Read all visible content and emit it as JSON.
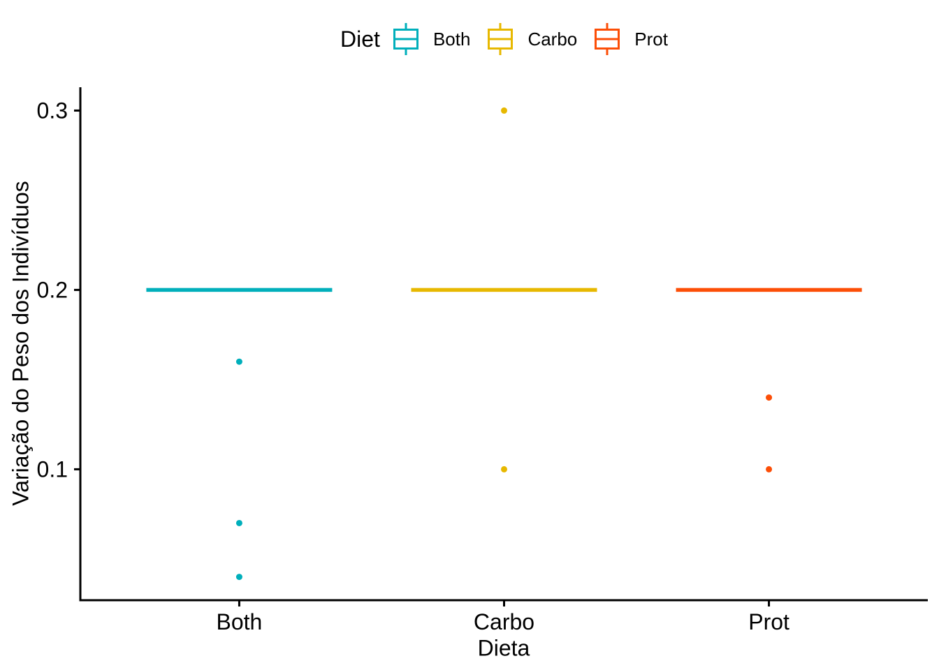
{
  "chart_data": {
    "type": "boxplot",
    "title": "",
    "xlabel": "Dieta",
    "ylabel": "Variação do Peso dos Indivíduos",
    "categories": [
      "Both",
      "Carbo",
      "Prot"
    ],
    "yticks": [
      {
        "value": 0.1,
        "label": "0.1"
      },
      {
        "value": 0.2,
        "label": "0.2"
      },
      {
        "value": 0.3,
        "label": "0.3"
      }
    ],
    "ylim": [
      0.027,
      0.313
    ],
    "grid": "off",
    "legend": {
      "title": "Diet",
      "position": "top",
      "entries": [
        "Both",
        "Carbo",
        "Prot"
      ]
    },
    "colors": {
      "Both": "#00AFBB",
      "Carbo": "#E7B800",
      "Prot": "#FC4E07",
      "axis": "#000000",
      "background": "#FFFFFF"
    },
    "series": [
      {
        "name": "Both",
        "color": "#00AFBB",
        "whisker_low": 0.2,
        "q1": 0.2,
        "median": 0.2,
        "q3": 0.2,
        "whisker_high": 0.2,
        "outliers": [
          0.16,
          0.07,
          0.04
        ]
      },
      {
        "name": "Carbo",
        "color": "#E7B800",
        "whisker_low": 0.2,
        "q1": 0.2,
        "median": 0.2,
        "q3": 0.2,
        "whisker_high": 0.2,
        "outliers": [
          0.3,
          0.1
        ]
      },
      {
        "name": "Prot",
        "color": "#FC4E07",
        "whisker_low": 0.2,
        "q1": 0.2,
        "median": 0.2,
        "q3": 0.2,
        "whisker_high": 0.2,
        "outliers": [
          0.14,
          0.1
        ]
      }
    ]
  }
}
